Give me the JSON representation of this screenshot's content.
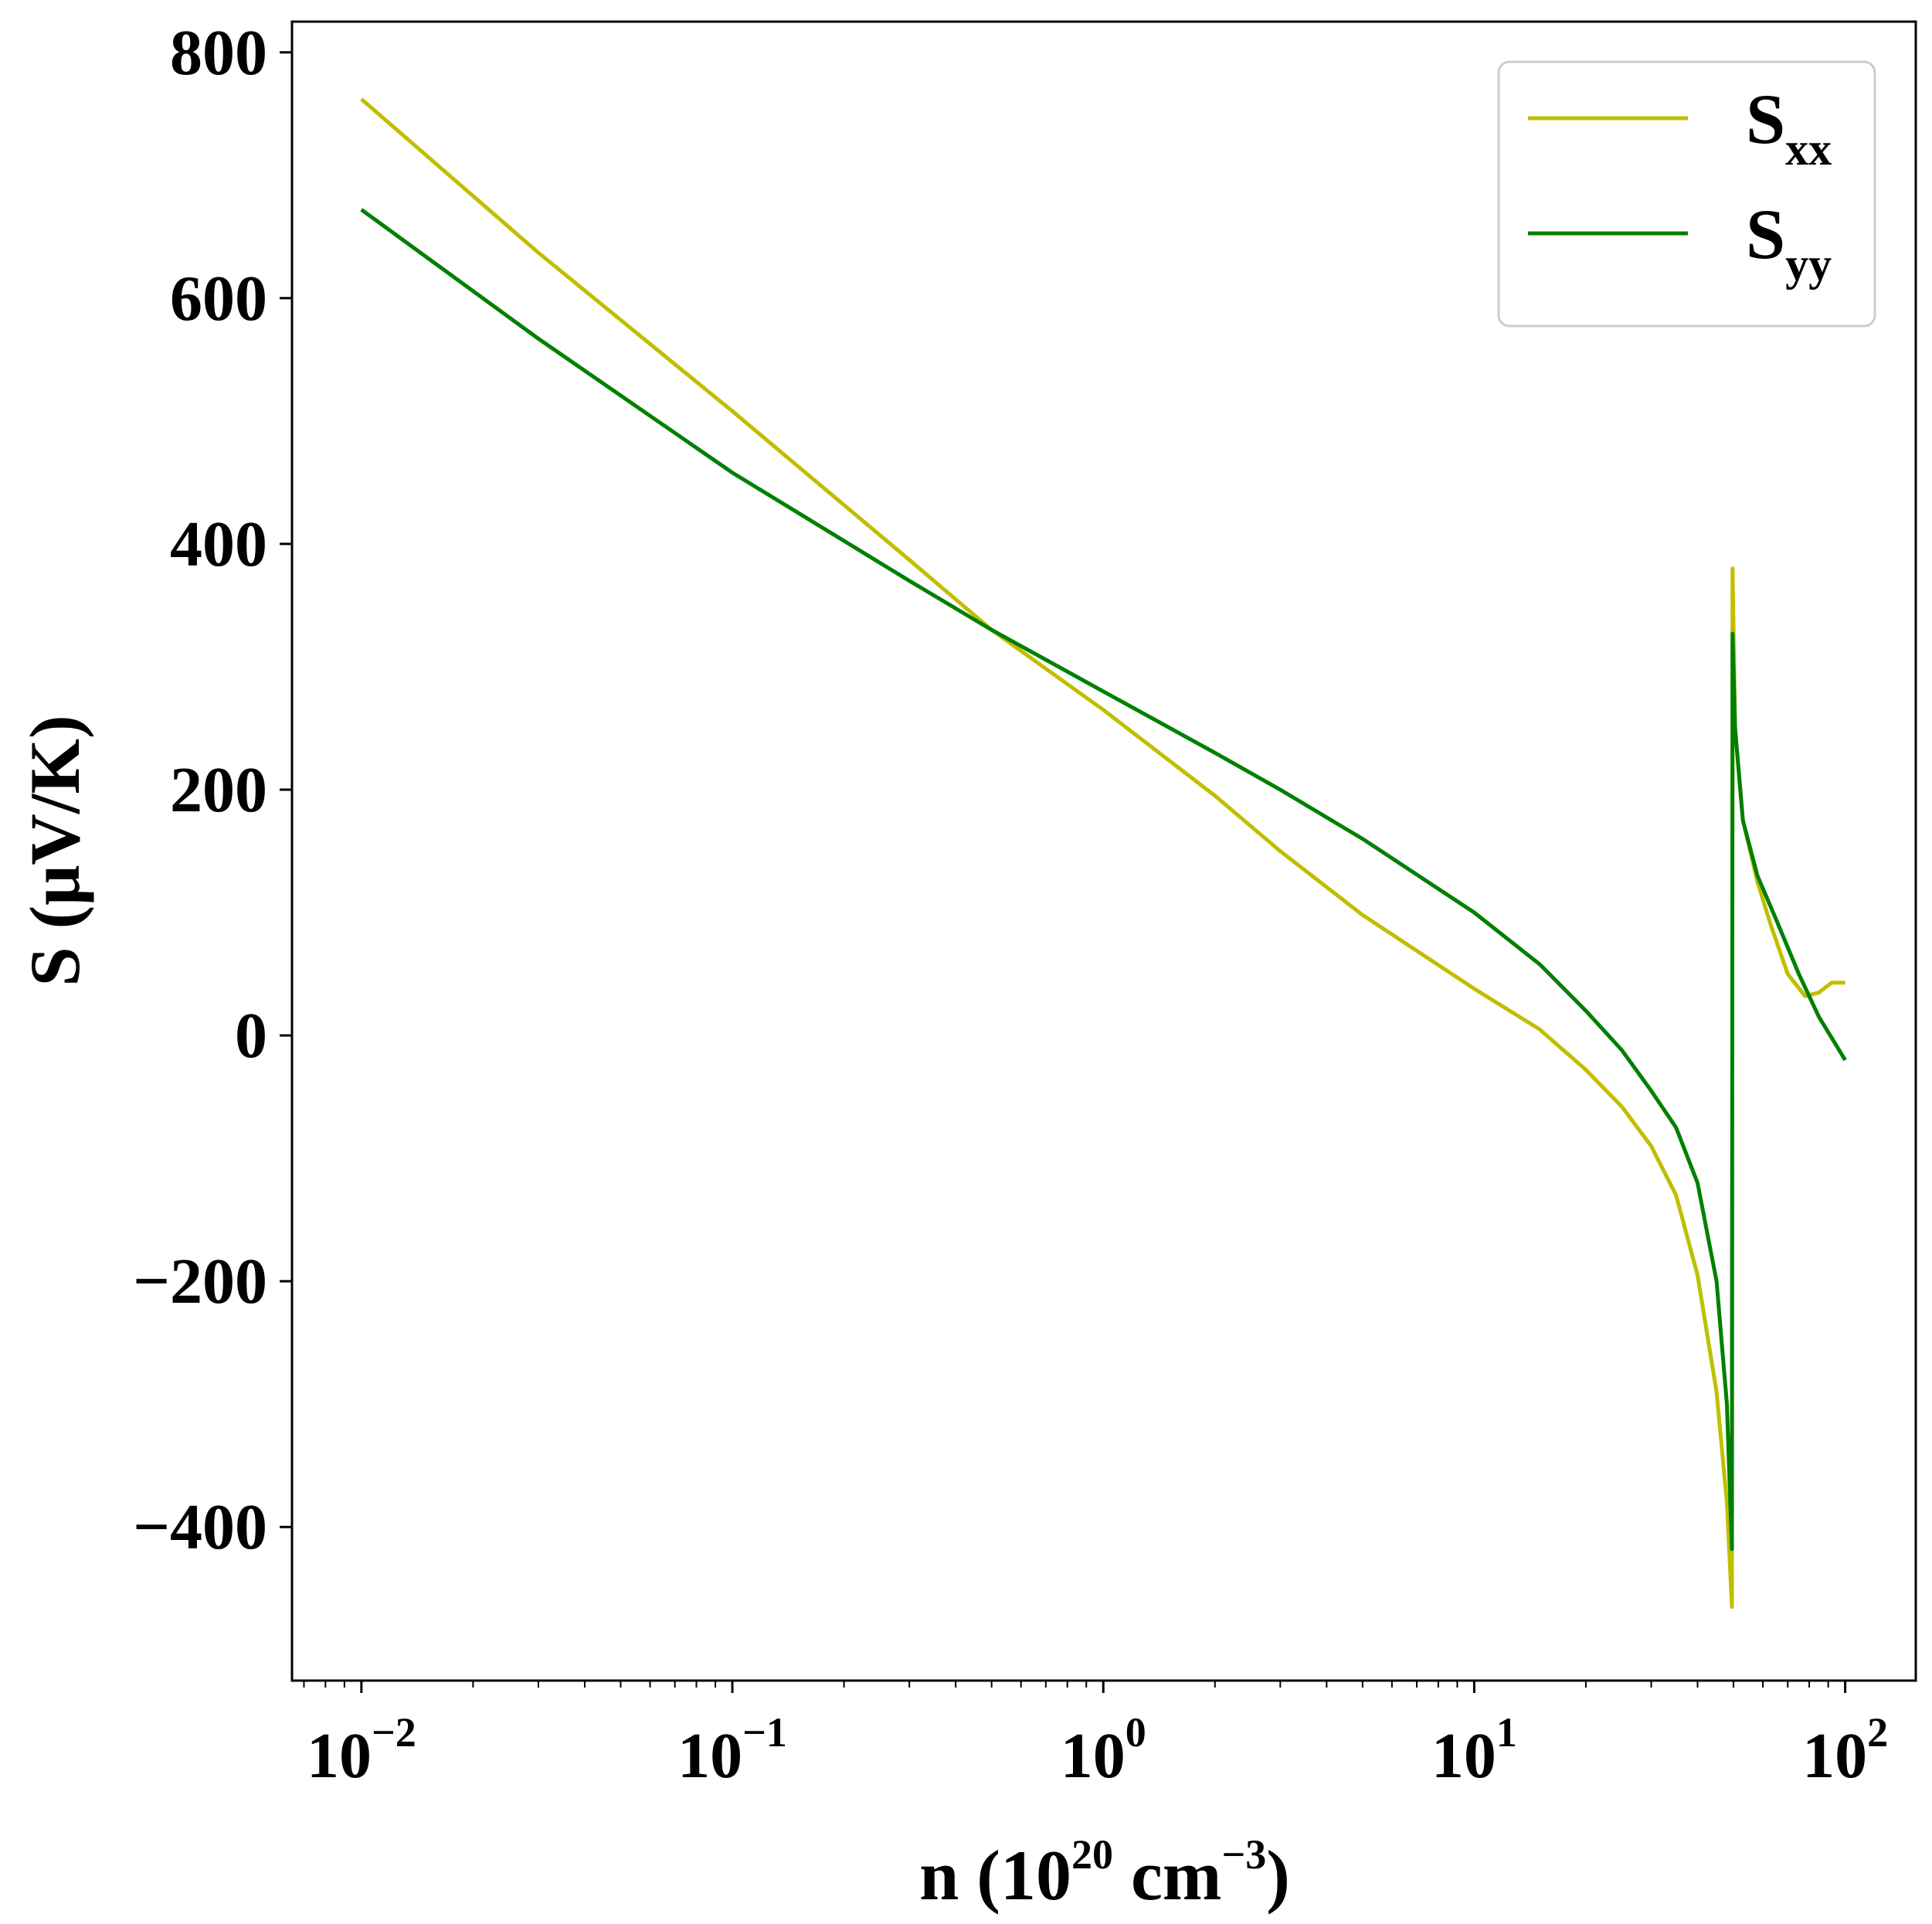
{
  "chart_data": {
    "type": "line",
    "xscale": "log",
    "xlim": [
      0.0065,
      155
    ],
    "ylim": [
      -525,
      825
    ],
    "xlabel": {
      "base": "n (10",
      "sup1": "20",
      "mid": " cm",
      "sup2": "−3",
      "end": ")"
    },
    "ylabel": "S (μV/K)",
    "x_ticks": [
      {
        "value": 0.01,
        "base": "10",
        "exp": "−2"
      },
      {
        "value": 0.1,
        "base": "10",
        "exp": "−1"
      },
      {
        "value": 1,
        "base": "10",
        "exp": "0"
      },
      {
        "value": 10,
        "base": "10",
        "exp": "1"
      },
      {
        "value": 100,
        "base": "10",
        "exp": "2"
      }
    ],
    "y_ticks": [
      {
        "value": 800,
        "label": "800"
      },
      {
        "value": 600,
        "label": "600"
      },
      {
        "value": 400,
        "label": "400"
      },
      {
        "value": 200,
        "label": "200"
      },
      {
        "value": 0,
        "label": "0"
      },
      {
        "value": -200,
        "label": "−200"
      },
      {
        "value": -400,
        "label": "−400"
      }
    ],
    "grid": false,
    "legend_position": "top-right",
    "series": [
      {
        "name": "S",
        "sub": "xx",
        "color": "#bfbf00",
        "points": [
          [
            0.01,
            762
          ],
          [
            0.03,
            637
          ],
          [
            0.1,
            508
          ],
          [
            0.3,
            387
          ],
          [
            0.5,
            330
          ],
          [
            1,
            265
          ],
          [
            2,
            195
          ],
          [
            3,
            150
          ],
          [
            5,
            98
          ],
          [
            10,
            38
          ],
          [
            15,
            5
          ],
          [
            20,
            -28
          ],
          [
            25,
            -58
          ],
          [
            30,
            -90
          ],
          [
            35,
            -130
          ],
          [
            40,
            -195
          ],
          [
            45,
            -290
          ],
          [
            48,
            -380
          ],
          [
            49.5,
            -465
          ],
          [
            49.7,
            380
          ],
          [
            50.5,
            250
          ],
          [
            53,
            175
          ],
          [
            58,
            125
          ],
          [
            63,
            90
          ],
          [
            70,
            50
          ],
          [
            78,
            32
          ],
          [
            85,
            35
          ],
          [
            92,
            43
          ],
          [
            100,
            43
          ]
        ]
      },
      {
        "name": "S",
        "sub": "yy",
        "color": "#008000",
        "points": [
          [
            0.01,
            672
          ],
          [
            0.03,
            567
          ],
          [
            0.1,
            458
          ],
          [
            0.3,
            370
          ],
          [
            0.5,
            330
          ],
          [
            1,
            280
          ],
          [
            2,
            230
          ],
          [
            3,
            200
          ],
          [
            5,
            160
          ],
          [
            10,
            100
          ],
          [
            15,
            58
          ],
          [
            20,
            20
          ],
          [
            25,
            -12
          ],
          [
            30,
            -45
          ],
          [
            35,
            -75
          ],
          [
            40,
            -120
          ],
          [
            45,
            -200
          ],
          [
            48,
            -300
          ],
          [
            49.5,
            -418
          ],
          [
            49.7,
            327
          ],
          [
            50.5,
            250
          ],
          [
            53,
            175
          ],
          [
            58,
            130
          ],
          [
            65,
            95
          ],
          [
            75,
            50
          ],
          [
            85,
            15
          ],
          [
            92,
            -2
          ],
          [
            100,
            -20
          ]
        ]
      }
    ]
  }
}
